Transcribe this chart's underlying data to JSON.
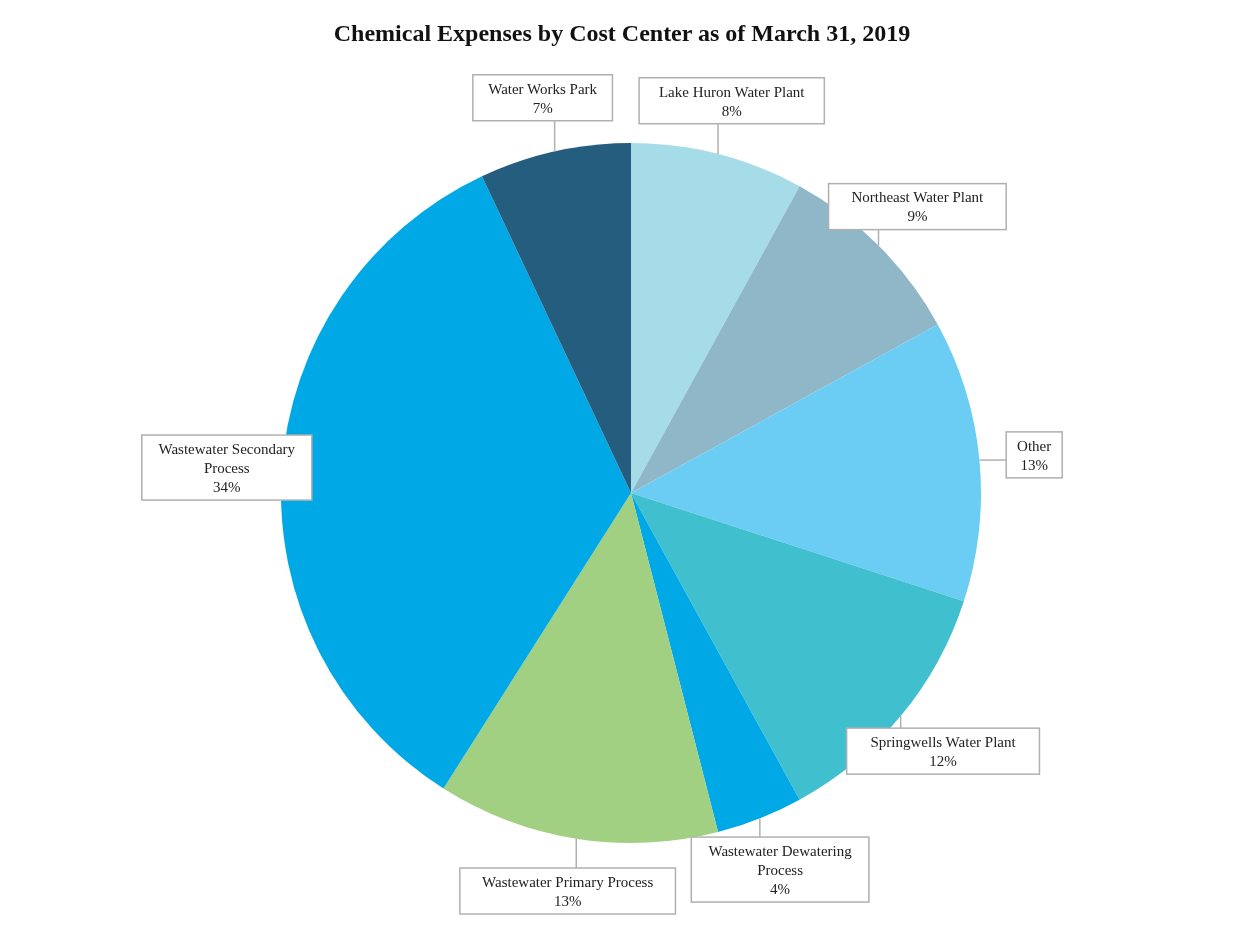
{
  "chart_data": {
    "type": "pie",
    "title": "Chemical Expenses by Cost Center as of March 31, 2019",
    "categories": [
      "Lake Huron Water Plant",
      "Northeast Water Plant",
      "Other",
      "Springwells Water Plant",
      "Wastewater Dewatering Process",
      "Wastewater Primary Process",
      "Wastewater Secondary Process",
      "Water Works Park"
    ],
    "values": [
      8,
      9,
      13,
      12,
      4,
      13,
      34,
      7
    ],
    "colors": [
      "#a6dce8",
      "#8fb7c8",
      "#6bcdf4",
      "#40c0cf",
      "#00a9e5",
      "#a2d083",
      "#00a9e5",
      "#245d7e"
    ],
    "value_labels": [
      "8%",
      "9%",
      "13%",
      "12%",
      "4%",
      "13%",
      "34%",
      "7%"
    ]
  }
}
